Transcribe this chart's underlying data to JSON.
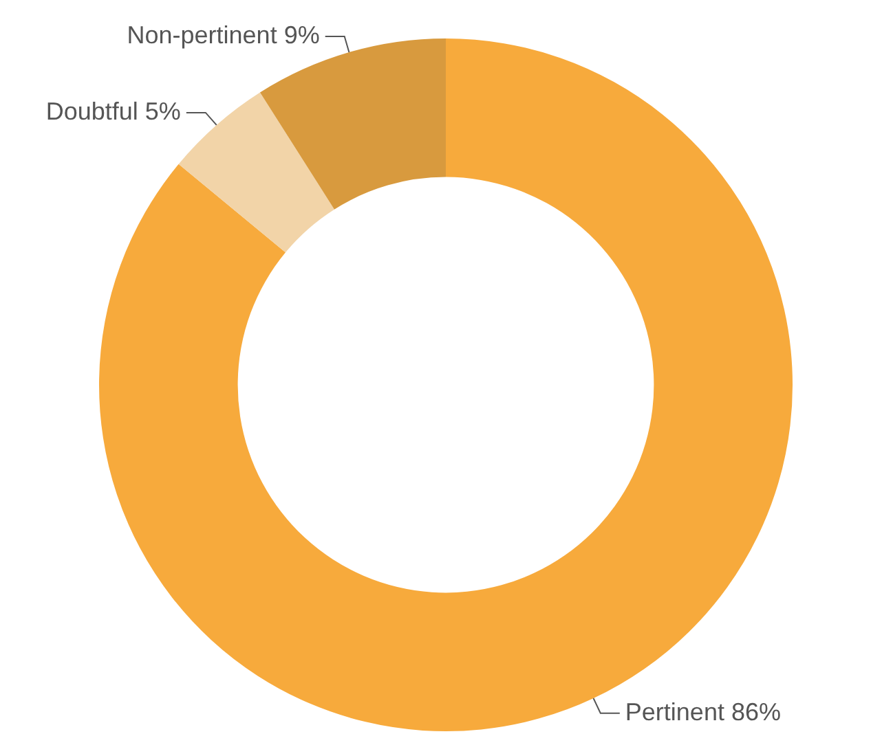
{
  "chart_data": {
    "type": "donut",
    "categories": [
      "Pertinent",
      "Doubtful",
      "Non-pertinent"
    ],
    "values": [
      86,
      5,
      9
    ],
    "colors": [
      "#f7aa3c",
      "#f2d4a8",
      "#d89a3e"
    ],
    "value_labels": [
      "86%",
      "5%",
      "9%"
    ],
    "legend": false
  }
}
